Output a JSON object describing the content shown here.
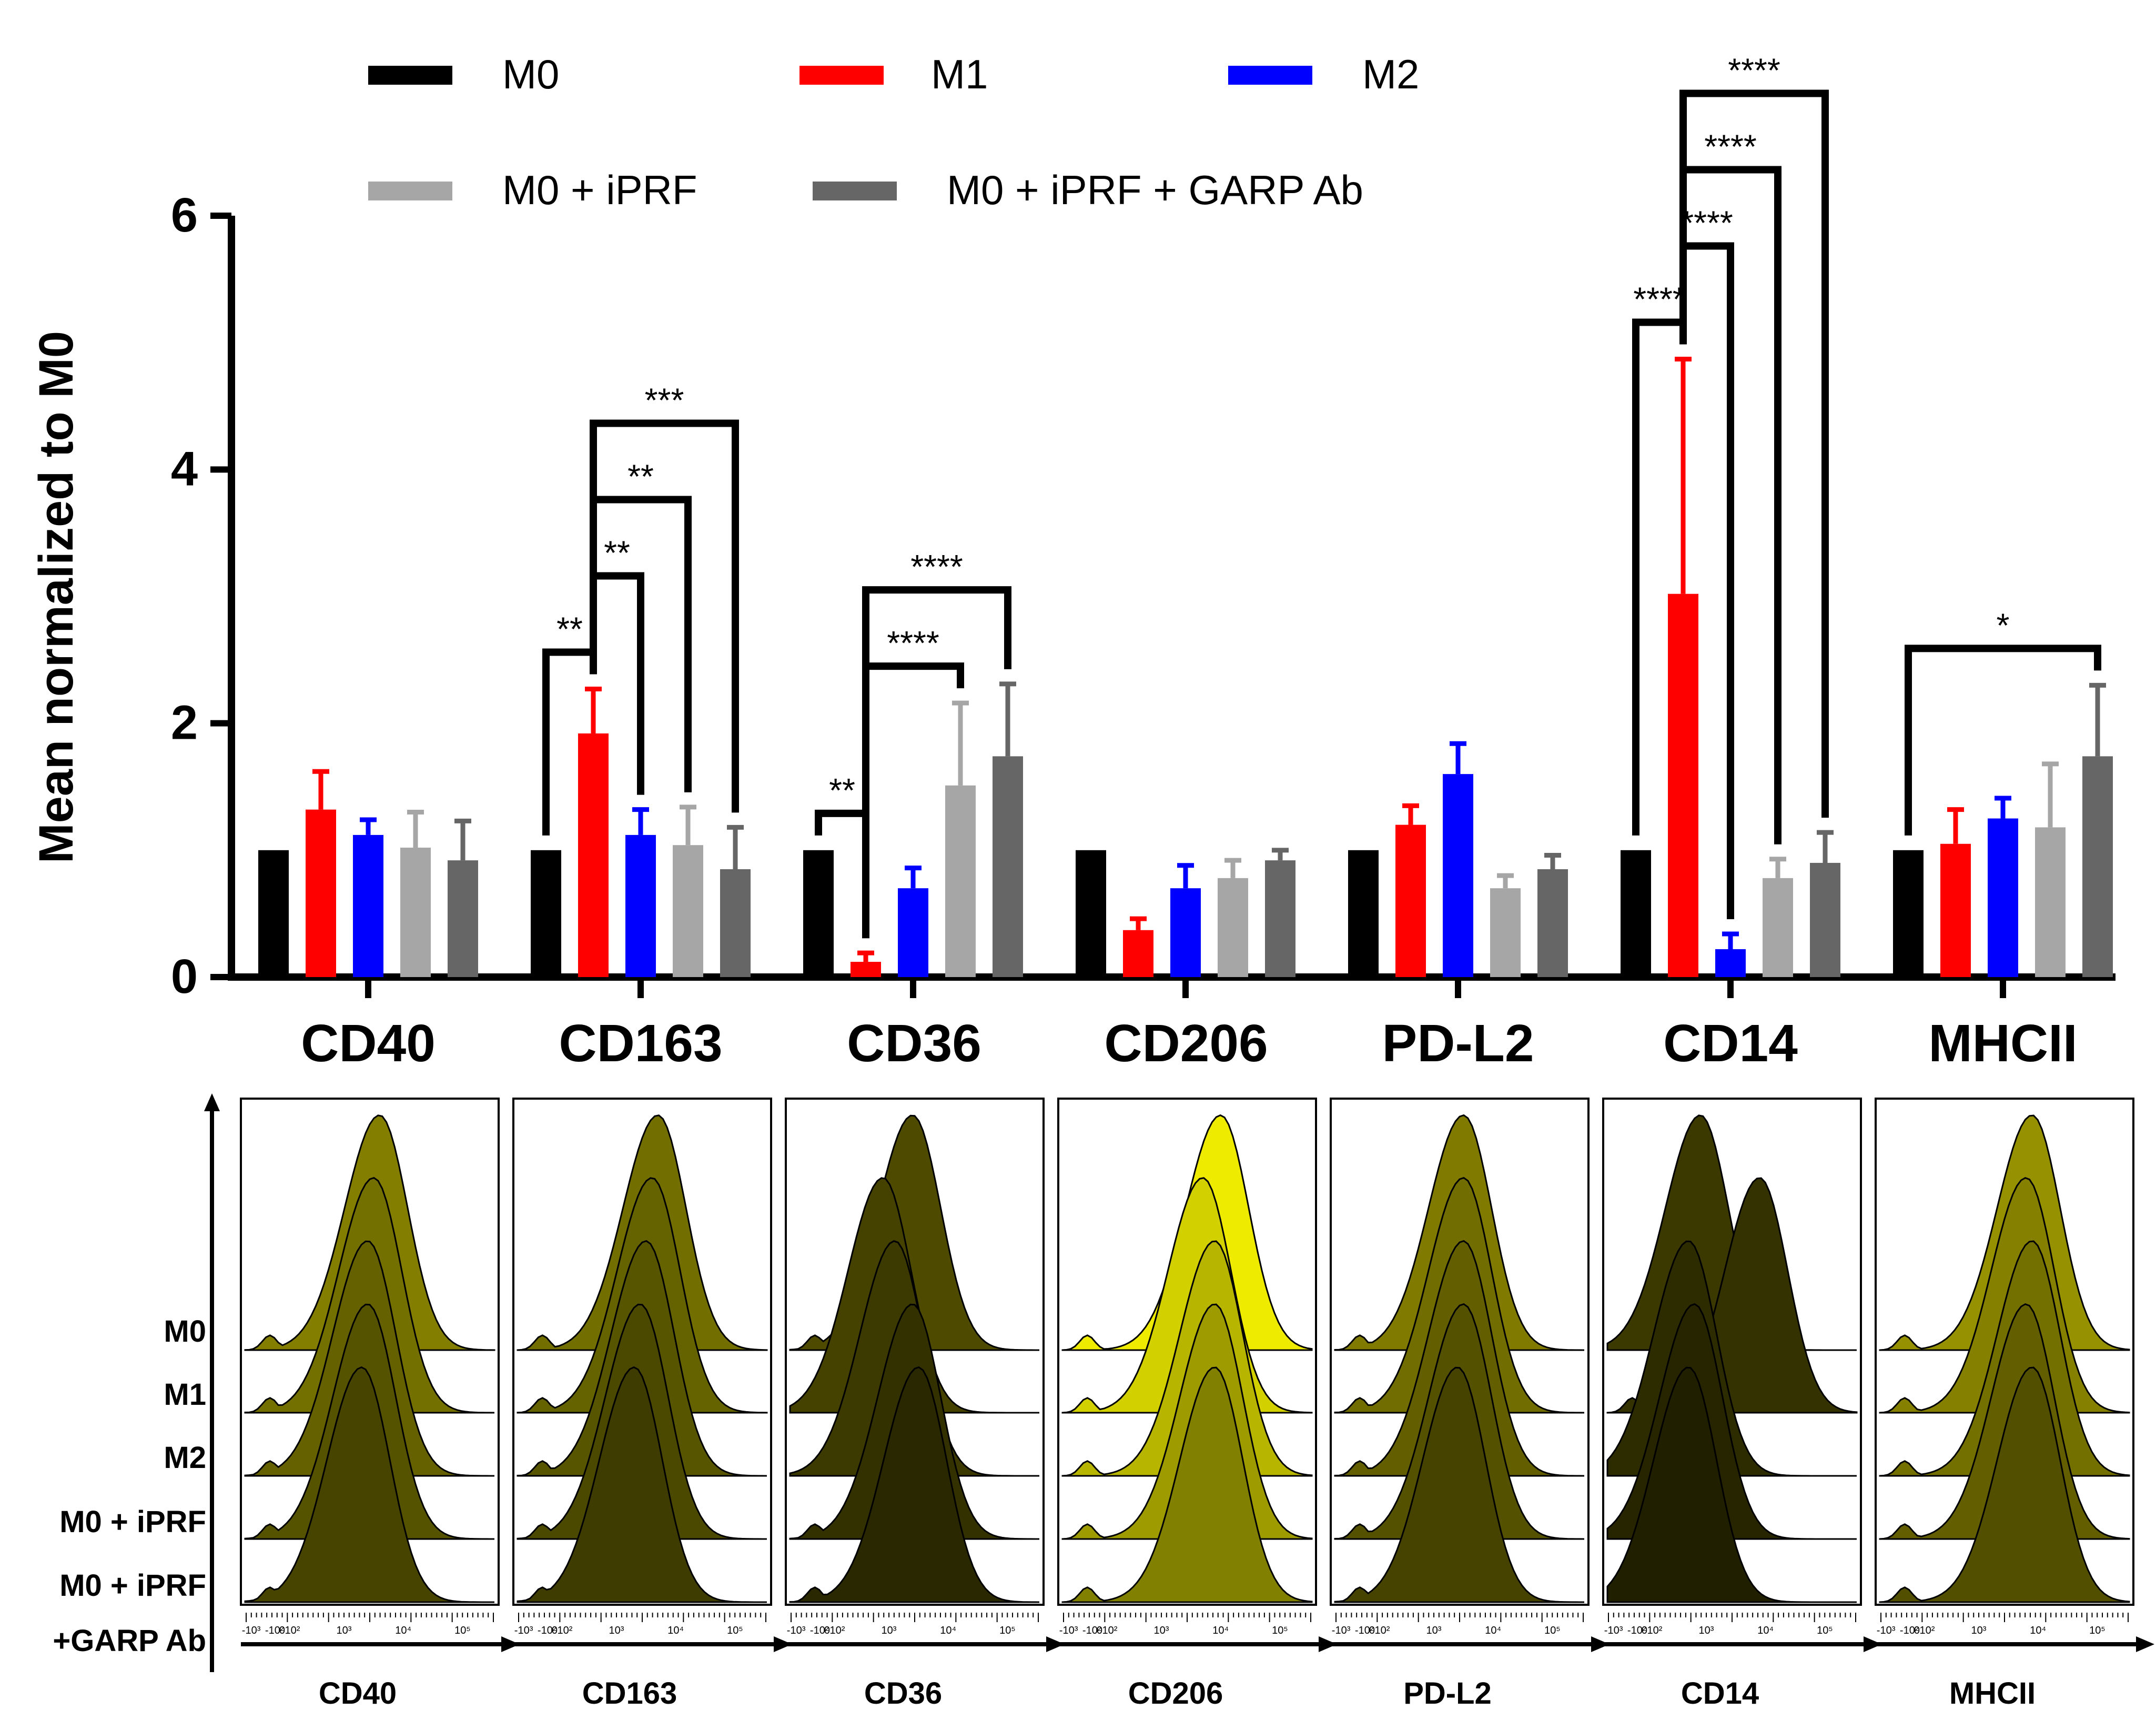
{
  "chart_data": {
    "type": "bar",
    "ylabel": "Mean normalized to M0",
    "xlabel": "",
    "ylim": [
      0,
      6
    ],
    "yticks": [
      "0",
      "2",
      "4",
      "6"
    ],
    "ytick_values": [
      0,
      2,
      4,
      6
    ],
    "categories": [
      "CD40",
      "CD163",
      "CD36",
      "CD206",
      "PD-L2",
      "CD14",
      "MHCII"
    ],
    "legend_position": "top",
    "series": [
      {
        "name": "M0",
        "color": "#000000",
        "values": [
          1.0,
          1.0,
          1.0,
          1.0,
          1.0,
          1.0,
          1.0
        ],
        "errors": [
          0,
          0,
          0,
          0,
          0,
          0,
          0
        ]
      },
      {
        "name": "M1",
        "color": "#ff0000",
        "values": [
          1.32,
          1.92,
          0.12,
          0.37,
          1.2,
          3.02,
          1.05
        ],
        "errors": [
          0.3,
          0.35,
          0.07,
          0.09,
          0.15,
          1.85,
          0.27
        ]
      },
      {
        "name": "M2",
        "color": "#0000ff",
        "values": [
          1.12,
          1.12,
          0.7,
          0.7,
          1.6,
          0.22,
          1.25
        ],
        "errors": [
          0.12,
          0.2,
          0.16,
          0.18,
          0.24,
          0.12,
          0.16
        ]
      },
      {
        "name": "M0 + iPRF",
        "color": "#a6a6a6",
        "values": [
          1.02,
          1.04,
          1.51,
          0.78,
          0.7,
          0.78,
          1.18
        ],
        "errors": [
          0.28,
          0.3,
          0.65,
          0.14,
          0.1,
          0.15,
          0.5
        ]
      },
      {
        "name": "M0 + iPRF + GARP Ab",
        "color": "#666666",
        "values": [
          0.92,
          0.85,
          1.74,
          0.92,
          0.85,
          0.9,
          1.74
        ],
        "errors": [
          0.31,
          0.33,
          0.57,
          0.08,
          0.11,
          0.24,
          0.56
        ]
      }
    ],
    "significance": [
      {
        "category": "CD163",
        "from": "M0",
        "to": "M1",
        "label": "**"
      },
      {
        "category": "CD163",
        "from": "M1",
        "to": "M2",
        "label": "**"
      },
      {
        "category": "CD163",
        "from": "M1",
        "to": "M0 + iPRF",
        "label": "**"
      },
      {
        "category": "CD163",
        "from": "M1",
        "to": "M0 + iPRF + GARP Ab",
        "label": "***"
      },
      {
        "category": "CD36",
        "from": "M0",
        "to": "M1",
        "label": "**"
      },
      {
        "category": "CD36",
        "from": "M1",
        "to": "M0 + iPRF",
        "label": "****"
      },
      {
        "category": "CD36",
        "from": "M1",
        "to": "M0 + iPRF + GARP Ab",
        "label": "****"
      },
      {
        "category": "CD14",
        "from": "M0",
        "to": "M1",
        "label": "****"
      },
      {
        "category": "CD14",
        "from": "M1",
        "to": "M2",
        "label": "****"
      },
      {
        "category": "CD14",
        "from": "M1",
        "to": "M0 + iPRF",
        "label": "****"
      },
      {
        "category": "CD14",
        "from": "M1",
        "to": "M0 + iPRF + GARP Ab",
        "label": "****"
      },
      {
        "category": "MHCII",
        "from": "M0",
        "to": "M0 + iPRF + GARP Ab",
        "label": "*"
      }
    ],
    "histograms": {
      "type": "flow-cytometry-histogram",
      "markers": [
        "CD40",
        "CD163",
        "CD36",
        "CD206",
        "PD-L2",
        "CD14",
        "MHCII"
      ],
      "row_labels": [
        "M0",
        "M1",
        "M2",
        "M0 + iPRF",
        "M0 + iPRF",
        "+GARP Ab"
      ],
      "samples": [
        "M0",
        "M1",
        "M2",
        "M0 + iPRF",
        "M0 + iPRF + GARP Ab"
      ],
      "x_ticks": [
        "-10³",
        "-10²",
        "0",
        "10²",
        "10³",
        "10⁴",
        "10⁵"
      ],
      "x_tick_values": [
        -3,
        -2,
        0,
        2,
        3,
        4,
        5
      ],
      "peak_log": [
        [
          3.6,
          3.5,
          3.4,
          3.4,
          3.3
        ],
        [
          3.7,
          3.6,
          3.5,
          3.4,
          3.3
        ],
        [
          3.4,
          2.9,
          3.1,
          3.4,
          3.5
        ],
        [
          4.0,
          3.7,
          3.9,
          3.9,
          3.9
        ],
        [
          3.5,
          3.5,
          3.5,
          3.5,
          3.4
        ],
        [
          2.9,
          3.9,
          2.7,
          2.8,
          2.7
        ],
        [
          3.9,
          3.8,
          3.9,
          3.8,
          3.9
        ]
      ],
      "panel_colors": [
        "#7d7800",
        "#6d6900",
        "#4a4700",
        "#e3e000",
        "#7a7500",
        "#383600",
        "#8f8a00"
      ]
    }
  }
}
